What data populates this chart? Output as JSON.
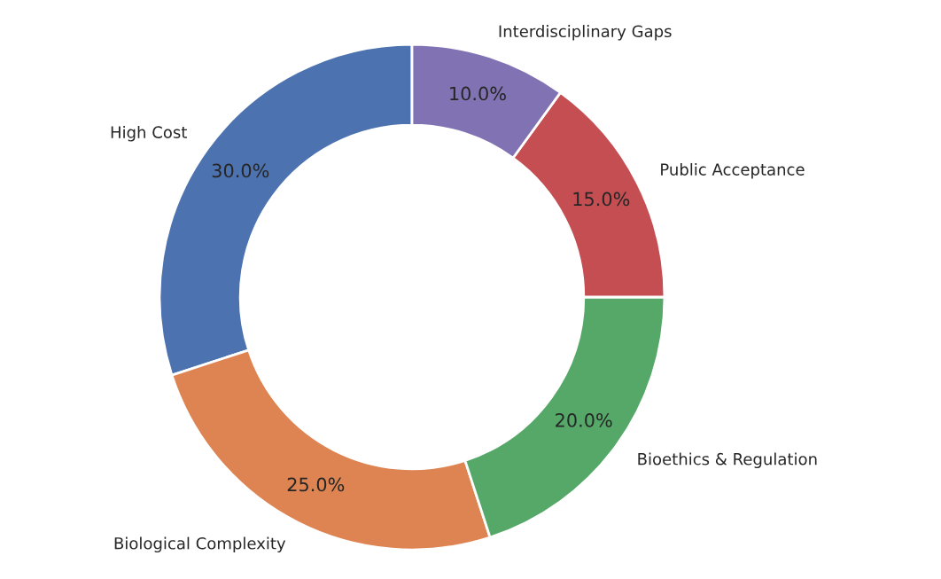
{
  "chart_data": {
    "type": "donut",
    "categories": [
      "High Cost",
      "Biological Complexity",
      "Bioethics & Regulation",
      "Public Acceptance",
      "Interdisciplinary Gaps"
    ],
    "values": [
      30,
      25,
      20,
      15,
      10
    ],
    "colors": [
      "#4c72b0",
      "#dd8452",
      "#55a868",
      "#c44e52",
      "#8172b3"
    ],
    "value_labels": [
      "30.0%",
      "25.0%",
      "20.0%",
      "15.0%",
      "10.0%"
    ]
  }
}
